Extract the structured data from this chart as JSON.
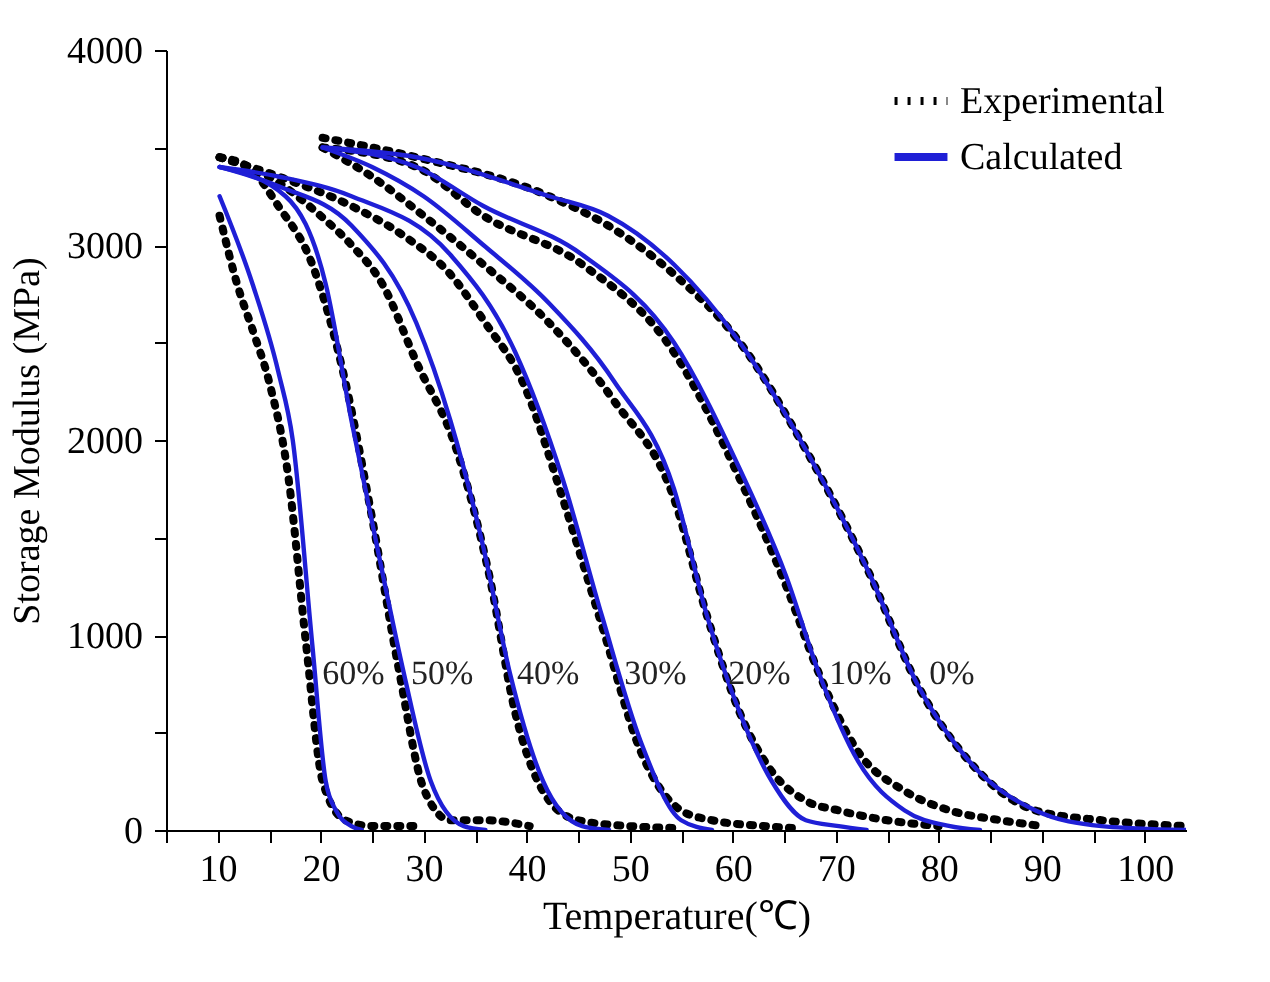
{
  "chart_data": {
    "type": "line",
    "xlabel": "Temperature(℃)",
    "ylabel": "Storage Modulus (MPa)",
    "xlim": [
      5,
      104
    ],
    "ylim": [
      0,
      4000
    ],
    "xticks": [
      {
        "value": 5,
        "label": null
      },
      10,
      {
        "value": 15,
        "label": null
      },
      20,
      {
        "value": 25,
        "label": null
      },
      30,
      {
        "value": 35,
        "label": null
      },
      40,
      {
        "value": 45,
        "label": null
      },
      50,
      {
        "value": 55,
        "label": null
      },
      60,
      {
        "value": 65,
        "label": null
      },
      70,
      {
        "value": 75,
        "label": null
      },
      80,
      {
        "value": 85,
        "label": null
      },
      90,
      {
        "value": 95,
        "label": null
      },
      100
    ],
    "yticks": [
      0,
      {
        "value": 500,
        "label": null
      },
      1000,
      {
        "value": 1500,
        "label": null
      },
      2000,
      {
        "value": 2500,
        "label": null
      },
      3000,
      {
        "value": 3500,
        "label": null
      },
      4000
    ],
    "grid": false,
    "legend": "top right",
    "marker": "none",
    "series": [
      {
        "name": "Experimental",
        "color": "#000000",
        "line_style": "dotted",
        "x": [
          10.2,
          11.9,
          13.5,
          15,
          16.9,
          18.6,
          20.2,
          22.4,
          25,
          29.3
        ],
        "values": [
          3150,
          2800,
          2550,
          2300,
          1800,
          950,
          250,
          50,
          20,
          20
        ]
      },
      {
        "color": "#000000",
        "line_style": "dotted",
        "x": [
          10.2,
          13,
          15.9,
          19.2,
          22.4,
          25,
          27.5,
          30.1,
          32.6,
          36,
          40.3
        ],
        "values": [
          3450,
          3400,
          3200,
          2900,
          2300,
          1600,
          850,
          200,
          50,
          50,
          20
        ]
      },
      {
        "color": "#000000",
        "line_style": "dotted",
        "x": [
          10.2,
          15,
          20,
          23,
          26,
          29.3,
          33.2,
          36.4,
          38.9,
          42.2,
          45,
          50,
          55
        ],
        "values": [
          3450,
          3350,
          3150,
          3000,
          2800,
          2400,
          1950,
          1300,
          600,
          150,
          50,
          20,
          10
        ]
      },
      {
        "color": "#000000",
        "line_style": "dotted",
        "x": [
          10.2,
          16,
          23,
          28,
          32.6,
          36,
          39.6,
          43.5,
          47.3,
          51.1,
          55,
          58,
          63,
          66
        ],
        "values": [
          3450,
          3350,
          3200,
          3050,
          2850,
          2600,
          2300,
          1700,
          1050,
          400,
          100,
          50,
          20,
          10
        ]
      },
      {
        "color": "#000000",
        "line_style": "dotted",
        "x": [
          20.2,
          25,
          30,
          35.8,
          42.2,
          48.5,
          54.3,
          57.5,
          60.7,
          63.8,
          67.1,
          70.3,
          75,
          80
        ],
        "values": [
          3500,
          3350,
          3150,
          2900,
          2600,
          2200,
          1700,
          1100,
          600,
          300,
          150,
          100,
          50,
          20
        ]
      },
      {
        "color": "#000000",
        "line_style": "dotted",
        "x": [
          20.2,
          29.3,
          35.8,
          45.4,
          54.3,
          60.7,
          65.2,
          68.4,
          72.2,
          76.7,
          81.1,
          86,
          90
        ],
        "values": [
          3500,
          3400,
          3150,
          2900,
          2450,
          1800,
          1250,
          800,
          400,
          200,
          100,
          50,
          20
        ]
      },
      {
        "color": "#000000",
        "line_style": "dotted",
        "x": [
          20.2,
          29.3,
          42.2,
          47.9,
          54.3,
          60.7,
          67.1,
          73.4,
          77.9,
          83,
          89.4,
          95.8,
          104
        ],
        "values": [
          3550,
          3450,
          3250,
          3100,
          2850,
          2500,
          1950,
          1300,
          750,
          350,
          100,
          50,
          20
        ]
      },
      {
        "name": "Calculated",
        "color": "#1f1fd6",
        "line_style": "solid",
        "x": [
          10.2,
          13.4,
          15.9,
          17.3,
          19.2,
          20.5,
          21.5,
          23,
          24
        ],
        "values": [
          3250,
          2800,
          2350,
          2000,
          950,
          250,
          100,
          20,
          0
        ]
      },
      {
        "color": "#1f1fd6",
        "line_style": "solid",
        "x": [
          10.2,
          16.6,
          20.5,
          23,
          25.5,
          28.1,
          30.7,
          33.9,
          36
        ],
        "values": [
          3400,
          3250,
          2800,
          2100,
          1450,
          800,
          250,
          20,
          0
        ]
      },
      {
        "color": "#1f1fd6",
        "line_style": "solid",
        "x": [
          10.2,
          16,
          23,
          29.3,
          32.6,
          35.8,
          38.4,
          41.6,
          45.4,
          48
        ],
        "values": [
          3400,
          3300,
          3100,
          2600,
          2100,
          1450,
          800,
          250,
          20,
          0
        ]
      },
      {
        "color": "#1f1fd6",
        "line_style": "solid",
        "x": [
          10.2,
          16,
          23,
          32.6,
          38.9,
          43.5,
          47.3,
          51.1,
          55,
          58
        ],
        "values": [
          3400,
          3350,
          3250,
          2950,
          2450,
          1800,
          1100,
          450,
          50,
          0
        ]
      },
      {
        "color": "#1f1fd6",
        "line_style": "solid",
        "x": [
          20.2,
          25,
          30,
          35.8,
          42.2,
          48.5,
          54.3,
          57.5,
          60.7,
          63.8,
          67.1,
          70.3,
          73
        ],
        "values": [
          3500,
          3400,
          3250,
          3000,
          2700,
          2300,
          1750,
          1100,
          600,
          250,
          50,
          20,
          0
        ]
      },
      {
        "color": "#1f1fd6",
        "line_style": "solid",
        "x": [
          20.2,
          29.3,
          35.8,
          45.4,
          54.3,
          60.7,
          65.2,
          68.4,
          72.2,
          76.7,
          81.1,
          84
        ],
        "values": [
          3500,
          3400,
          3200,
          2950,
          2500,
          1850,
          1300,
          800,
          350,
          100,
          20,
          0
        ]
      },
      {
        "color": "#1f1fd6",
        "line_style": "solid",
        "x": [
          20.2,
          29.3,
          42.2,
          47.9,
          54.3,
          60.7,
          67.1,
          73.4,
          77.9,
          83,
          89.4,
          95.8,
          104
        ],
        "values": [
          3500,
          3450,
          3250,
          3150,
          2900,
          2500,
          1950,
          1300,
          750,
          350,
          100,
          20,
          0
        ]
      }
    ],
    "annotations": [
      {
        "text": "60%",
        "x": 19.4,
        "y": 800
      },
      {
        "text": "50%",
        "x": 28,
        "y": 800
      },
      {
        "text": "40%",
        "x": 38.3,
        "y": 800
      },
      {
        "text": "30%",
        "x": 48.7,
        "y": 800
      },
      {
        "text": "20%",
        "x": 58.8,
        "y": 800
      },
      {
        "text": "10%",
        "x": 68.6,
        "y": 800
      },
      {
        "text": "0%",
        "x": 78.3,
        "y": 800
      }
    ]
  }
}
